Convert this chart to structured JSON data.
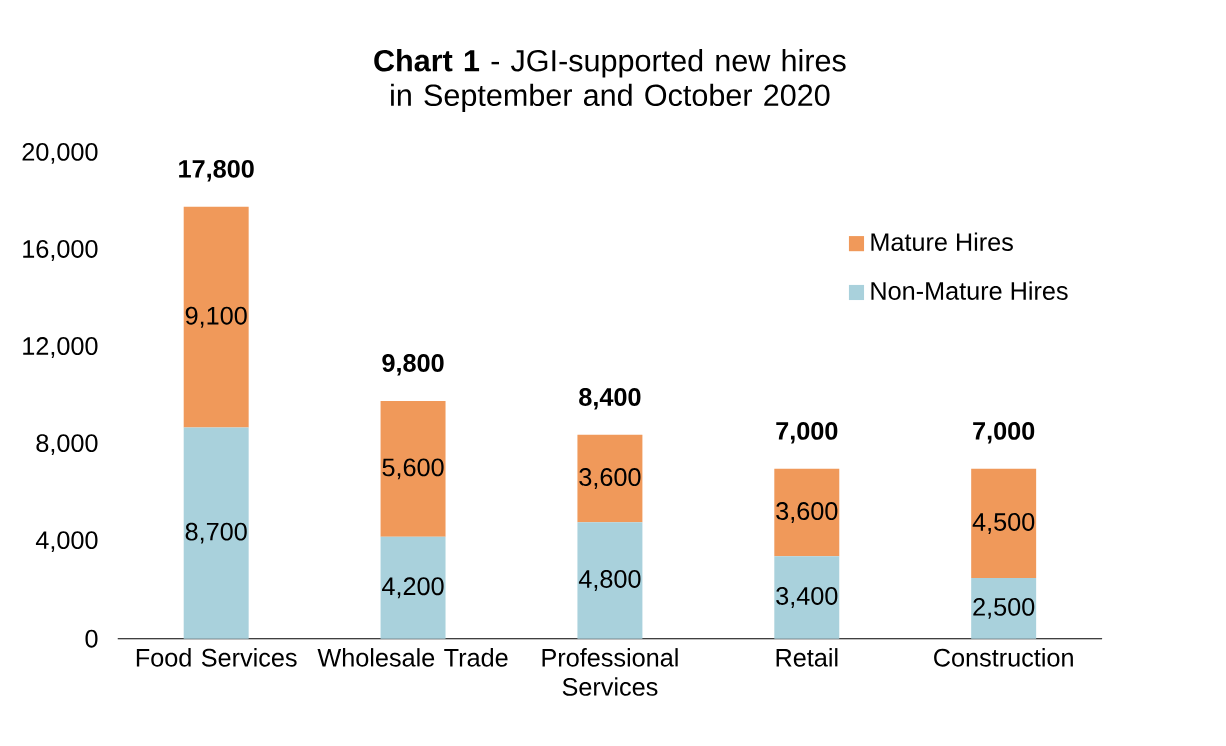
{
  "chart_data": {
    "type": "bar",
    "title": "**Chart 1** - JGI-supported new hires in September and October 2020",
    "categories": [
      "Food Services",
      "Wholesale Trade",
      "Professional Services",
      "Retail",
      "Construction"
    ],
    "stacked": true,
    "series": [
      {
        "name": "Non-Mature Hires",
        "color": "#a9d1dc",
        "values": [
          8700,
          4200,
          4800,
          3400,
          2500
        ],
        "value_labels": [
          "8,700",
          "4,200",
          "4,800",
          "3,400",
          "2,500"
        ]
      },
      {
        "name": "Mature Hires",
        "color": "#f0995a",
        "values": [
          9100,
          5600,
          3600,
          3600,
          4500
        ],
        "value_labels": [
          "9,100",
          "5,600",
          "3,600",
          "3,600",
          "4,500"
        ]
      }
    ],
    "totals": [
      "17,800",
      "9,800",
      "8,400",
      "7,000",
      "7,000"
    ],
    "ylim": [
      0,
      20000
    ],
    "yticks": [
      {
        "value": 0,
        "label": "0"
      },
      {
        "value": 4000,
        "label": "4,000"
      },
      {
        "value": 8000,
        "label": "8,000"
      },
      {
        "value": 12000,
        "label": "12,000"
      },
      {
        "value": 16000,
        "label": "16,000"
      },
      {
        "value": 20000,
        "label": "20,000"
      }
    ],
    "legend": "top right"
  }
}
